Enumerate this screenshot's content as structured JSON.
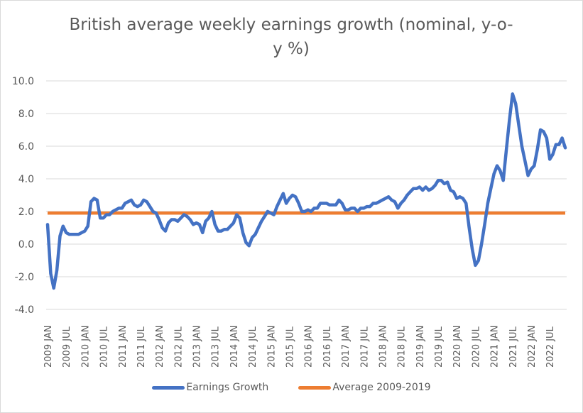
{
  "chart_data": {
    "type": "line",
    "title": "British average weekly earnings growth (nominal, y-o-y %)",
    "title_lines": [
      "British average weekly earnings growth (nominal, y-o-",
      "y %)"
    ],
    "xlabel": "",
    "ylabel": "",
    "ylim": [
      -4.0,
      10.0
    ],
    "y_ticks": [
      "10.0",
      "8.0",
      "6.0",
      "4.0",
      "2.0",
      "0.0",
      "-2.0",
      "-4.0"
    ],
    "y_tick_values": [
      10,
      8,
      6,
      4,
      2,
      0,
      -2,
      -4
    ],
    "grid": true,
    "legend_position": "bottom",
    "x_ticks": [
      "2009 JAN",
      "2009 JUL",
      "2010 JAN",
      "2010 JUL",
      "2011 JAN",
      "2011 JUL",
      "2012 JAN",
      "2012 JUL",
      "2013 JAN",
      "2013 JUL",
      "2014 JAN",
      "2014 JUL",
      "2015 JAN",
      "2015 JUL",
      "2016 JAN",
      "2016 JUL",
      "2017 JAN",
      "2017 JUL",
      "2018 JAN",
      "2018 JUL",
      "2019 JAN",
      "2019 JUL",
      "2020 JAN",
      "2020 JUL",
      "2021 JAN",
      "2021 JUL",
      "2022 JAN",
      "2022 JUL"
    ],
    "x_start": "2009 JAN",
    "x_unit": "month",
    "series": [
      {
        "name": "Earnings Growth",
        "color": "#4472c4",
        "values": [
          1.2,
          -1.8,
          -2.7,
          -1.6,
          0.5,
          1.1,
          0.7,
          0.6,
          0.6,
          0.6,
          0.6,
          0.7,
          0.8,
          1.1,
          2.6,
          2.8,
          2.7,
          1.6,
          1.6,
          1.8,
          1.8,
          2.0,
          2.1,
          2.2,
          2.2,
          2.5,
          2.6,
          2.7,
          2.4,
          2.3,
          2.4,
          2.7,
          2.6,
          2.3,
          2.0,
          1.9,
          1.5,
          1.0,
          0.8,
          1.3,
          1.5,
          1.5,
          1.4,
          1.6,
          1.8,
          1.7,
          1.5,
          1.2,
          1.3,
          1.2,
          0.7,
          1.4,
          1.6,
          2.0,
          1.2,
          0.8,
          0.8,
          0.9,
          0.9,
          1.1,
          1.3,
          1.8,
          1.6,
          0.7,
          0.1,
          -0.1,
          0.4,
          0.6,
          1.0,
          1.4,
          1.7,
          2.0,
          1.9,
          1.8,
          2.3,
          2.7,
          3.1,
          2.5,
          2.8,
          3.0,
          2.9,
          2.5,
          2.0,
          2.0,
          2.1,
          2.0,
          2.2,
          2.2,
          2.5,
          2.5,
          2.5,
          2.4,
          2.4,
          2.4,
          2.7,
          2.5,
          2.1,
          2.1,
          2.2,
          2.2,
          2.0,
          2.2,
          2.2,
          2.3,
          2.3,
          2.5,
          2.5,
          2.6,
          2.7,
          2.8,
          2.9,
          2.7,
          2.6,
          2.2,
          2.5,
          2.7,
          3.0,
          3.2,
          3.4,
          3.4,
          3.5,
          3.3,
          3.5,
          3.3,
          3.4,
          3.6,
          3.9,
          3.9,
          3.7,
          3.8,
          3.3,
          3.2,
          2.8,
          2.9,
          2.8,
          2.5,
          1.0,
          -0.3,
          -1.3,
          -1.0,
          0.0,
          1.2,
          2.5,
          3.4,
          4.3,
          4.8,
          4.5,
          3.9,
          5.8,
          7.6,
          9.2,
          8.6,
          7.3,
          6.0,
          5.1,
          4.2,
          4.6,
          4.8,
          5.8,
          7.0,
          6.9,
          6.5,
          5.2,
          5.5,
          6.1,
          6.1,
          6.5,
          5.9
        ]
      },
      {
        "name": "Average 2009-2019",
        "color": "#ed7d31",
        "constant": 1.9
      }
    ]
  },
  "legend": {
    "items": [
      {
        "label": "Earnings Growth",
        "color": "#4472c4"
      },
      {
        "label": "Average 2009-2019",
        "color": "#ed7d31"
      }
    ]
  }
}
